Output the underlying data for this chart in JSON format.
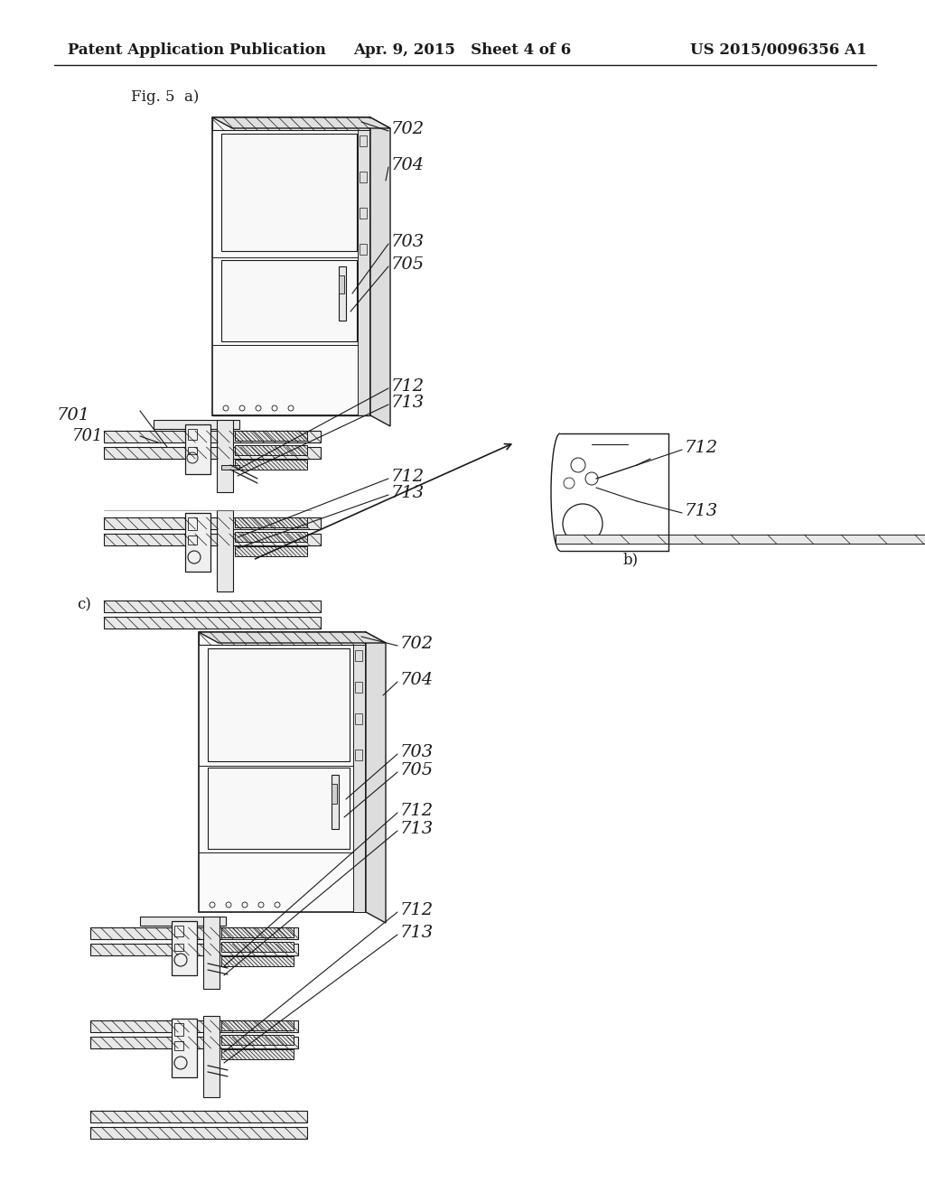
{
  "background_color": "#ffffff",
  "paper_color": "#f0ece4",
  "header_left": "Patent Application Publication",
  "header_center": "Apr. 9, 2015   Sheet 4 of 6",
  "header_right": "US 2015/0096356 A1",
  "line_color": "#1a1a1a",
  "text_color": "#1a1a1a",
  "fig_label_a": "Fig. 5  a)",
  "fig_label_b": "b)",
  "fig_label_c": "c)",
  "header_fontsize": 12,
  "label_fontsize": 14,
  "fig_label_fontsize": 12,
  "annotation_fontsize": 11
}
